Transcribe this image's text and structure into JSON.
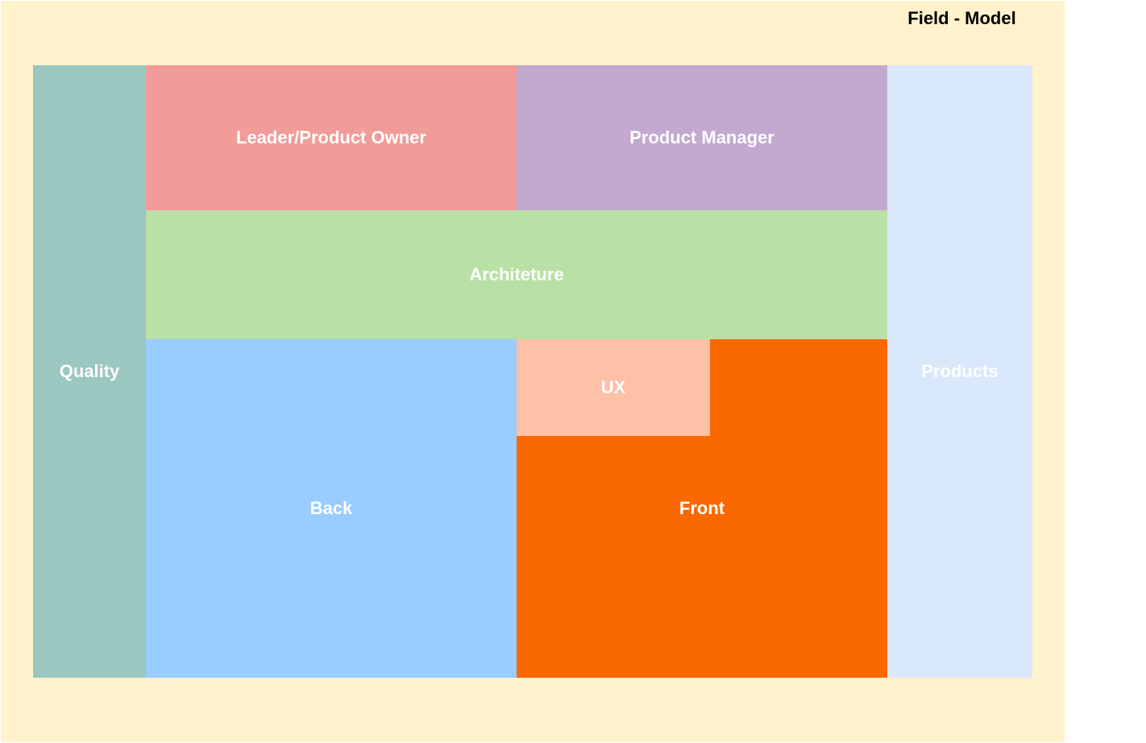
{
  "title": "Field - Model",
  "blocks": {
    "quality": {
      "label": "Quality",
      "color": "#9ac7bf"
    },
    "leader": {
      "label": "Leader/Product Owner",
      "color": "#f19c99"
    },
    "product_manager": {
      "label": "Product Manager",
      "color": "#c3a9cf"
    },
    "architecture": {
      "label": "Architeture",
      "color": "#b9e0a5"
    },
    "back": {
      "label": "Back",
      "color": "#99ccff"
    },
    "ux": {
      "label": "UX",
      "color": "#ffc0a8"
    },
    "front": {
      "label": "Front",
      "color": "#fa6800"
    },
    "products": {
      "label": "Products",
      "color": "#dae8fc"
    }
  },
  "frame_color": "#fff2cc"
}
